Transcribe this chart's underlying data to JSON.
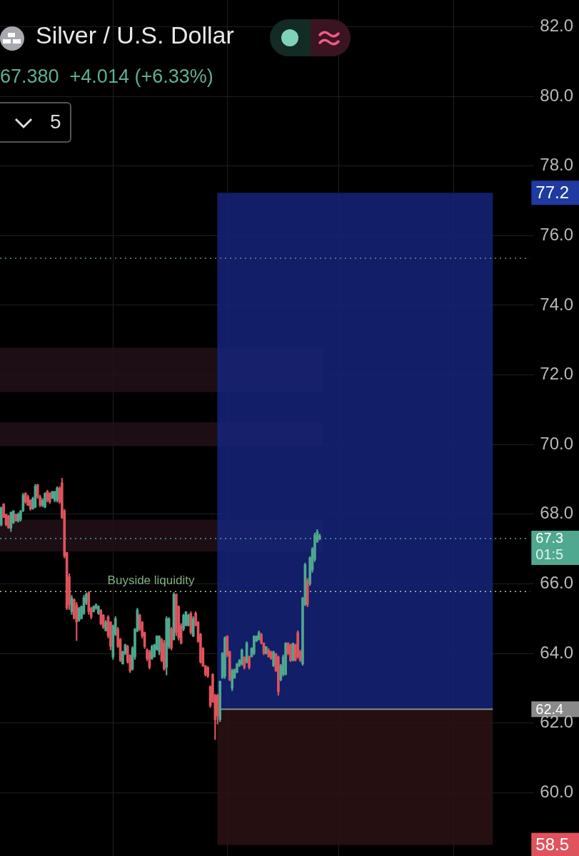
{
  "chart_data": {
    "type": "candlestick",
    "title": "Silver / U.S. Dollar",
    "subtitle": "67.380  +4.014 (+6.33%)",
    "categories": [
      null,
      null,
      null,
      null,
      null,
      null,
      null,
      null,
      null,
      null,
      null,
      null,
      null,
      null,
      null,
      null,
      null,
      null,
      null,
      null,
      null,
      null,
      null,
      null,
      null,
      null,
      null,
      null,
      null,
      null,
      null,
      null,
      null,
      null,
      null,
      null,
      null,
      null,
      null,
      null,
      null,
      null,
      null,
      null,
      null,
      null,
      null,
      null,
      null,
      null,
      null,
      null,
      null,
      null,
      null,
      null,
      null,
      null,
      null,
      null,
      null,
      null,
      null,
      null,
      null,
      null,
      null,
      null,
      null,
      null,
      null,
      null,
      null,
      null,
      null,
      null,
      null,
      null,
      null,
      null,
      null,
      null,
      null,
      null,
      null,
      null,
      null,
      null,
      null,
      null,
      null,
      null,
      null,
      null,
      null,
      null,
      null,
      null,
      null,
      null,
      null,
      null,
      null,
      null,
      null,
      null,
      null,
      null,
      null,
      null,
      null,
      null,
      null,
      null,
      null,
      null,
      null,
      null,
      null,
      null,
      null,
      null,
      null,
      null,
      null,
      null,
      null,
      null,
      null,
      null,
      null,
      null,
      null,
      null,
      null,
      null,
      null,
      null,
      null,
      null,
      null,
      null,
      null,
      null,
      null,
      null,
      null,
      null,
      null,
      null,
      null,
      null,
      null,
      null,
      null,
      null,
      null,
      null,
      null,
      null,
      null,
      null,
      null,
      null,
      null,
      null,
      null,
      null,
      null,
      null,
      null,
      null,
      null,
      null,
      null,
      null,
      null,
      null,
      null,
      null,
      null,
      null,
      null,
      null,
      null,
      null,
      null,
      null,
      null,
      null,
      null,
      null,
      null,
      null,
      null,
      null,
      null,
      null,
      null,
      null,
      null,
      null,
      null,
      null,
      null,
      null,
      null,
      null,
      null,
      null,
      null,
      null,
      null,
      null,
      null,
      null,
      null,
      null
    ],
    "ohlc": [
      [
        67.7,
        68.2,
        67.66,
        68.2
      ],
      [
        68.3,
        68.3,
        67.9,
        67.9
      ],
      [
        68.0,
        68.0,
        67.66,
        67.7
      ],
      [
        67.95,
        67.97,
        67.59,
        67.6
      ],
      [
        67.6,
        68.07,
        67.5,
        68.05
      ],
      [
        67.75,
        68.1,
        67.73,
        68.1
      ],
      [
        68.0,
        68.0,
        67.8,
        67.8
      ],
      [
        67.8,
        68.04,
        67.77,
        68.0
      ],
      [
        67.85,
        68.1,
        67.8,
        68.1
      ],
      [
        68.1,
        68.6,
        68.07,
        68.55
      ],
      [
        68.6,
        68.62,
        68.31,
        68.35
      ],
      [
        68.5,
        68.55,
        68.25,
        68.25
      ],
      [
        68.4,
        68.42,
        68.11,
        68.15
      ],
      [
        68.15,
        68.49,
        68.14,
        68.45
      ],
      [
        68.2,
        68.86,
        68.18,
        68.8
      ],
      [
        68.85,
        68.86,
        68.45,
        68.5
      ],
      [
        68.5,
        68.55,
        68.21,
        68.25
      ],
      [
        68.25,
        68.45,
        68.21,
        68.4
      ],
      [
        68.2,
        68.62,
        68.18,
        68.6
      ],
      [
        68.65,
        68.69,
        68.35,
        68.4
      ],
      [
        68.6,
        68.62,
        68.31,
        68.35
      ],
      [
        68.45,
        68.66,
        68.45,
        68.65
      ],
      [
        68.4,
        68.66,
        68.35,
        68.65
      ],
      [
        68.4,
        68.79,
        68.35,
        68.75
      ],
      [
        68.75,
        68.79,
        68.31,
        68.35
      ],
      [
        68.9,
        69.03,
        67.87,
        67.9
      ],
      [
        68.1,
        68.14,
        66.74,
        66.8
      ],
      [
        66.9,
        66.91,
        65.26,
        65.3
      ],
      [
        66.2,
        66.29,
        65.26,
        65.4
      ],
      [
        65.2,
        65.67,
        65.12,
        65.6
      ],
      [
        65.55,
        65.57,
        64.99,
        65.0
      ],
      [
        65.4,
        65.47,
        64.37,
        64.9
      ],
      [
        64.95,
        65.33,
        64.92,
        65.3
      ],
      [
        65.0,
        65.37,
        64.99,
        65.35
      ],
      [
        65.15,
        65.67,
        65.12,
        65.6
      ],
      [
        65.45,
        65.74,
        65.4,
        65.7
      ],
      [
        65.75,
        65.78,
        65.12,
        65.2
      ],
      [
        65.3,
        65.33,
        64.99,
        65.05
      ],
      [
        65.2,
        65.37,
        65.19,
        65.35
      ],
      [
        65.3,
        65.43,
        65.26,
        65.4
      ],
      [
        65.15,
        65.37,
        65.12,
        65.35
      ],
      [
        65.25,
        65.26,
        64.82,
        64.85
      ],
      [
        65.1,
        65.12,
        64.71,
        64.75
      ],
      [
        64.65,
        64.95,
        64.64,
        64.9
      ],
      [
        65.05,
        65.09,
        64.44,
        64.5
      ],
      [
        64.9,
        64.92,
        64.1,
        64.2
      ],
      [
        63.9,
        64.82,
        63.83,
        64.8
      ],
      [
        64.55,
        65.06,
        64.51,
        65.0
      ],
      [
        64.7,
        64.75,
        64.17,
        64.2
      ],
      [
        64.4,
        64.44,
        63.76,
        63.8
      ],
      [
        63.7,
        64.07,
        63.69,
        64.05
      ],
      [
        64.0,
        64.27,
        63.96,
        64.25
      ],
      [
        64.2,
        64.24,
        63.72,
        63.75
      ],
      [
        63.95,
        63.96,
        63.45,
        63.5
      ],
      [
        63.55,
        64.2,
        63.52,
        64.15
      ],
      [
        63.9,
        64.72,
        63.83,
        64.7
      ],
      [
        64.65,
        65.3,
        64.62,
        65.25
      ],
      [
        65.1,
        65.13,
        64.65,
        64.7
      ],
      [
        64.9,
        64.92,
        64.44,
        64.5
      ],
      [
        64.6,
        64.62,
        64.14,
        64.2
      ],
      [
        64.1,
        64.14,
        63.79,
        63.85
      ],
      [
        64.05,
        64.1,
        63.55,
        63.6
      ],
      [
        63.85,
        64.24,
        63.83,
        64.2
      ],
      [
        63.9,
        64.27,
        63.9,
        64.25
      ],
      [
        64.1,
        64.51,
        64.1,
        64.5
      ],
      [
        64.05,
        64.51,
        63.96,
        64.5
      ],
      [
        64.4,
        64.44,
        63.76,
        63.8
      ],
      [
        64.3,
        64.38,
        63.52,
        63.55
      ],
      [
        63.6,
        65.06,
        63.38,
        65.0
      ],
      [
        64.2,
        65.03,
        64.14,
        65.0
      ],
      [
        64.7,
        64.75,
        64.1,
        64.15
      ],
      [
        64.4,
        65.75,
        64.38,
        65.7
      ],
      [
        65.7,
        65.71,
        64.51,
        64.6
      ],
      [
        65.35,
        65.37,
        64.38,
        64.45
      ],
      [
        64.8,
        64.86,
        64.27,
        64.3
      ],
      [
        64.7,
        65.13,
        64.65,
        65.1
      ],
      [
        64.8,
        65.2,
        64.79,
        65.2
      ],
      [
        64.8,
        65.13,
        64.79,
        65.1
      ],
      [
        65.15,
        65.2,
        64.55,
        64.6
      ],
      [
        64.5,
        65.06,
        64.48,
        65.0
      ],
      [
        65.15,
        65.2,
        64.79,
        64.8
      ],
      [
        64.9,
        64.92,
        64.31,
        64.35
      ],
      [
        64.55,
        64.58,
        63.72,
        63.75
      ],
      [
        64.15,
        64.17,
        63.62,
        63.65
      ],
      [
        63.65,
        63.66,
        63.35,
        63.4
      ],
      [
        63.6,
        63.62,
        63.31,
        63.35
      ],
      [
        63.05,
        63.07,
        62.45,
        62.5
      ],
      [
        63.4,
        63.42,
        62.59,
        62.6
      ],
      [
        62.8,
        62.83,
        61.53,
        62.1
      ],
      [
        62.8,
        62.83,
        61.97,
        62.2
      ],
      [
        62.1,
        63.21,
        62.04,
        63.2
      ],
      [
        63.3,
        64.03,
        63.28,
        64.0
      ],
      [
        63.35,
        64.48,
        63.28,
        64.45
      ],
      [
        64.5,
        64.51,
        63.9,
        63.95
      ],
      [
        64.05,
        64.07,
        63.21,
        63.25
      ],
      [
        63.0,
        63.55,
        62.93,
        63.5
      ],
      [
        63.3,
        63.55,
        63.28,
        63.55
      ],
      [
        63.45,
        63.72,
        63.45,
        63.7
      ],
      [
        63.65,
        63.83,
        63.62,
        63.8
      ],
      [
        63.7,
        64.13,
        63.66,
        64.1
      ],
      [
        63.9,
        63.9,
        63.55,
        63.6
      ],
      [
        63.75,
        64.34,
        63.72,
        64.3
      ],
      [
        63.9,
        63.93,
        63.55,
        63.6
      ],
      [
        63.9,
        64.17,
        63.9,
        64.15
      ],
      [
        64.0,
        64.51,
        63.96,
        64.5
      ],
      [
        64.35,
        64.51,
        64.34,
        64.5
      ],
      [
        64.4,
        64.65,
        64.38,
        64.6
      ],
      [
        64.55,
        64.58,
        64.27,
        64.3
      ],
      [
        64.3,
        64.31,
        63.96,
        64.0
      ],
      [
        64.0,
        64.2,
        63.98,
        64.2
      ],
      [
        64.1,
        64.14,
        63.9,
        63.9
      ],
      [
        64.05,
        64.07,
        63.83,
        63.85
      ],
      [
        63.65,
        64.07,
        63.62,
        64.05
      ],
      [
        64.0,
        64.0,
        63.48,
        63.5
      ],
      [
        63.9,
        63.93,
        62.8,
        62.9
      ],
      [
        63.25,
        63.69,
        63.21,
        63.65
      ],
      [
        63.4,
        63.96,
        63.35,
        63.9
      ],
      [
        63.4,
        64.31,
        63.38,
        64.3
      ],
      [
        64.3,
        64.31,
        63.96,
        64.0
      ],
      [
        64.25,
        64.27,
        63.76,
        63.8
      ],
      [
        63.8,
        64.3,
        63.78,
        64.3
      ],
      [
        64.25,
        64.27,
        63.78,
        63.8
      ],
      [
        64.6,
        64.65,
        63.86,
        63.9
      ],
      [
        64.05,
        64.1,
        63.76,
        63.8
      ],
      [
        63.7,
        65.61,
        63.66,
        65.6
      ],
      [
        65.4,
        66.6,
        65.37,
        66.55
      ],
      [
        66.1,
        66.16,
        65.34,
        65.4
      ],
      [
        66.0,
        66.78,
        65.95,
        66.75
      ],
      [
        66.4,
        67.05,
        66.33,
        67.0
      ],
      [
        66.7,
        67.46,
        66.64,
        67.4
      ],
      [
        67.2,
        67.56,
        67.19,
        67.5
      ],
      [
        67.3,
        67.43,
        67.26,
        67.38
      ],
      null,
      null,
      null,
      null,
      null,
      null,
      null,
      null,
      null,
      null,
      null,
      null,
      null,
      null,
      null,
      null,
      null,
      null,
      null,
      null,
      null,
      null,
      null,
      null,
      null,
      null,
      null,
      null,
      null,
      null,
      null,
      null,
      null,
      null,
      null,
      null,
      null,
      null,
      null,
      null,
      null,
      null,
      null,
      null,
      null,
      null,
      null,
      null,
      null,
      null,
      null,
      null,
      null,
      null,
      null,
      null,
      null,
      null,
      null,
      null,
      null,
      null,
      null,
      null,
      null,
      null,
      null,
      null,
      null,
      null,
      null,
      null,
      null,
      null,
      null,
      null,
      null,
      null,
      null,
      null,
      null,
      null,
      null,
      null,
      null,
      null
    ],
    "colors": [
      "#4fa88f",
      "#e0535d",
      "#e0535d",
      "#e0535d",
      "#4fa88f",
      "#4fa88f",
      "#e0535d",
      "#4fa88f",
      "#4fa88f",
      "#4fa88f",
      "#e0535d",
      "#e0535d",
      "#e0535d",
      "#4fa88f",
      "#4fa88f",
      "#e0535d",
      "#e0535d",
      "#4fa88f",
      "#4fa88f",
      "#e0535d",
      "#e0535d",
      "#4fa88f",
      "#4fa88f",
      "#4fa88f",
      "#e0535d",
      "#e0535d",
      "#e0535d",
      "#e0535d",
      "#e0535d",
      "#4fa88f",
      "#e0535d",
      "#e0535d",
      "#4fa88f",
      "#4fa88f",
      "#4fa88f",
      "#4fa88f",
      "#e0535d",
      "#e0535d",
      "#4fa88f",
      "#4fa88f",
      "#4fa88f",
      "#e0535d",
      "#e0535d",
      "#4fa88f",
      "#e0535d",
      "#e0535d",
      "#4fa88f",
      "#4fa88f",
      "#e0535d",
      "#e0535d",
      "#4fa88f",
      "#4fa88f",
      "#e0535d",
      "#e0535d",
      "#4fa88f",
      "#4fa88f",
      "#4fa88f",
      "#e0535d",
      "#e0535d",
      "#e0535d",
      "#e0535d",
      "#e0535d",
      "#4fa88f",
      "#4fa88f",
      "#4fa88f",
      "#4fa88f",
      "#e0535d",
      "#e0535d",
      "#4fa88f",
      "#4fa88f",
      "#e0535d",
      "#4fa88f",
      "#e0535d",
      "#e0535d",
      "#e0535d",
      "#4fa88f",
      "#4fa88f",
      "#4fa88f",
      "#e0535d",
      "#4fa88f",
      "#e0535d",
      "#e0535d",
      "#e0535d",
      "#e0535d",
      "#e0535d",
      "#e0535d",
      "#e0535d",
      "#e0535d",
      "#e0535d",
      "#e0535d",
      "#4fa88f",
      "#4fa88f",
      "#4fa88f",
      "#e0535d",
      "#e0535d",
      "#4fa88f",
      "#4fa88f",
      "#4fa88f",
      "#4fa88f",
      "#4fa88f",
      "#e0535d",
      "#4fa88f",
      "#e0535d",
      "#4fa88f",
      "#4fa88f",
      "#4fa88f",
      "#4fa88f",
      "#e0535d",
      "#e0535d",
      "#4fa88f",
      "#e0535d",
      "#e0535d",
      "#4fa88f",
      "#e0535d",
      "#e0535d",
      "#4fa88f",
      "#4fa88f",
      "#4fa88f",
      "#e0535d",
      "#e0535d",
      "#4fa88f",
      "#e0535d",
      "#e0535d",
      "#e0535d",
      "#4fa88f",
      "#4fa88f",
      "#e0535d",
      "#4fa88f",
      "#4fa88f",
      "#4fa88f",
      "#4fa88f",
      "#4fa88f",
      null,
      null,
      null,
      null,
      null,
      null,
      null,
      null,
      null,
      null,
      null,
      null,
      null,
      null,
      null,
      null,
      null,
      null,
      null,
      null,
      null,
      null,
      null,
      null,
      null,
      null,
      null,
      null,
      null,
      null,
      null,
      null,
      null,
      null,
      null,
      null,
      null,
      null,
      null,
      null,
      null,
      null,
      null,
      null,
      null,
      null,
      null,
      null,
      null,
      null,
      null,
      null,
      null,
      null,
      null,
      null,
      null,
      null,
      null,
      null,
      null,
      null,
      null,
      null,
      null,
      null,
      null,
      null,
      null,
      null,
      null,
      null,
      null,
      null,
      null,
      null,
      null,
      null,
      null,
      null,
      null,
      null,
      null,
      null,
      null,
      null
    ],
    "ylim": [
      58.13,
      82.82
    ],
    "yticks": [
      {
        "value": 60,
        "label": "60.0"
      },
      {
        "value": 62,
        "label": "62.0"
      },
      {
        "value": 64,
        "label": "64.0"
      },
      {
        "value": 66,
        "label": "66.0"
      },
      {
        "value": 68,
        "label": "68.0"
      },
      {
        "value": 70,
        "label": "70.0"
      },
      {
        "value": 72,
        "label": "72.0"
      },
      {
        "value": 74,
        "label": "74.0"
      },
      {
        "value": 76,
        "label": "76.0"
      },
      {
        "value": 78,
        "label": "78.0"
      },
      {
        "value": 80,
        "label": "80.0"
      },
      {
        "value": 82,
        "label": "82.0"
      }
    ],
    "grid": true,
    "bands": [
      {
        "axis": "y",
        "from": 71.51,
        "to": 72.78,
        "color": "#22101a"
      },
      {
        "axis": "y",
        "from": 69.96,
        "to": 70.64,
        "color": "#22101a"
      },
      {
        "axis": "y",
        "from": 66.93,
        "to": 67.84,
        "color": "#22101a"
      },
      {
        "axis": "y",
        "from": 77.23,
        "to": 62.4,
        "label": "77.2",
        "color": "#15237a"
      },
      {
        "axis": "y",
        "from": 58.5,
        "to": 62.4,
        "label": "58.5",
        "color": "#2c1214"
      }
    ],
    "ref_lines": [
      {
        "axis": "y",
        "value": 75.35,
        "color": "#5f8f80",
        "line_style": "dotted"
      },
      {
        "axis": "y",
        "value": 67.3,
        "label": "67.3",
        "color": "#4fa88f",
        "line_style": "dotted"
      },
      {
        "axis": "y",
        "value": 65.78,
        "color": "#a8c898",
        "line_style": "dotted"
      },
      {
        "axis": "y",
        "value": 62.4,
        "label": "62.4",
        "color": "#8a8a8a",
        "line_style": "solid"
      }
    ],
    "annotations": [
      "5",
      "01:5",
      {
        "text": "Buyside liquidity",
        "y": 65.78
      }
    ]
  }
}
